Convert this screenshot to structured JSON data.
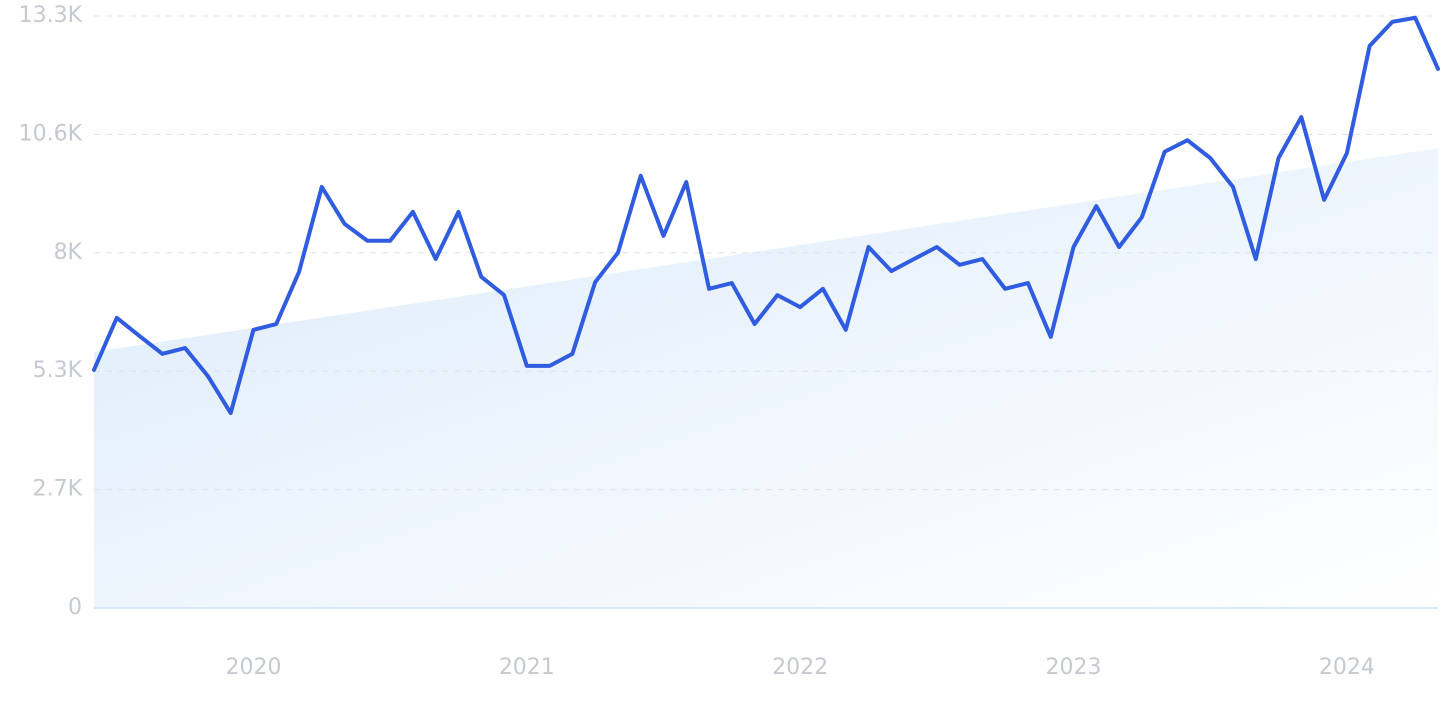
{
  "chart_data": {
    "type": "line",
    "categories": [
      null,
      null,
      null,
      null,
      null,
      null,
      null,
      "2020",
      null,
      null,
      null,
      null,
      null,
      null,
      null,
      null,
      null,
      null,
      null,
      "2021",
      null,
      null,
      null,
      null,
      null,
      null,
      null,
      null,
      null,
      null,
      null,
      "2022",
      null,
      null,
      null,
      null,
      null,
      null,
      null,
      null,
      null,
      null,
      null,
      "2023",
      null,
      null,
      null,
      null,
      null,
      null,
      null,
      null,
      null,
      null,
      null,
      "2024",
      null,
      null,
      null,
      null
    ],
    "series": [
      {
        "color": "#2f5ce0",
        "values": [
          5350,
          6520,
          6110,
          5710,
          5840,
          5210,
          4380,
          6250,
          6380,
          7550,
          9460,
          8630,
          8250,
          8250,
          8900,
          7840,
          8900,
          7440,
          7030,
          5440,
          5440,
          5710,
          7320,
          7980,
          9710,
          8360,
          9570,
          7170,
          7300,
          6380,
          7030,
          6760,
          7170,
          6250,
          8110,
          7570,
          7840,
          8110,
          7710,
          7840,
          7170,
          7300,
          6090,
          8110,
          9030,
          8110,
          8780,
          10250,
          10510,
          10110,
          9460,
          7840,
          10110,
          11030,
          9170,
          10220,
          12630,
          13170,
          13260,
          12110
        ]
      }
    ],
    "trend": [
      5750,
      10330
    ],
    "trend_color": "#dcebfb",
    "ylim": [
      0,
      13300
    ],
    "yticks": [
      0,
      {
        "value": 2660,
        "label": "2.7K"
      },
      {
        "value": 5320,
        "label": "5.3K"
      },
      {
        "value": 7980,
        "label": "8K"
      },
      {
        "value": 10640,
        "label": "10.6K"
      },
      {
        "value": 13300,
        "label": "13.3K"
      }
    ],
    "grid": true
  }
}
